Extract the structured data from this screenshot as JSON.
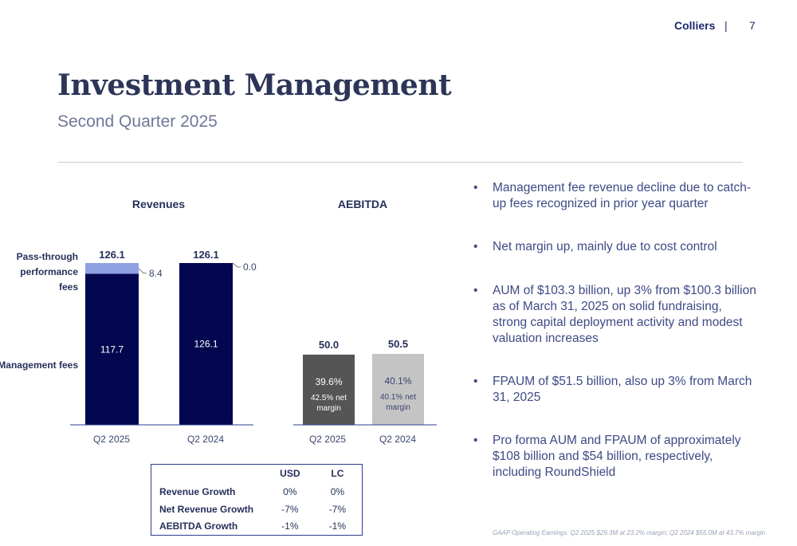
{
  "header": {
    "brand": "Colliers",
    "separator": "|",
    "page_number": "7"
  },
  "title": "Investment Management",
  "subtitle": "Second Quarter 2025",
  "colors": {
    "management_fees": "#03074f",
    "pass_through": "#8ea2e3",
    "aebitda_q2_2025": "#555555",
    "aebitda_q2_2024": "#c4c4c4"
  },
  "chart_data": [
    {
      "type": "bar",
      "stacked": true,
      "title": "Revenues",
      "categories": [
        "Q2 2025",
        "Q2 2024"
      ],
      "series": [
        {
          "name": "Management fees",
          "values": [
            117.7,
            126.1
          ],
          "labels": [
            "117.7",
            "126.1"
          ]
        },
        {
          "name": "Pass-through performance fees",
          "values": [
            8.4,
            0.0
          ],
          "labels": [
            "8.4",
            "0.0"
          ]
        }
      ],
      "totals": [
        "126.1",
        "126.1"
      ],
      "legend": {
        "placement": "left",
        "labels": [
          "Pass-through performance fees",
          "Management fees"
        ]
      }
    },
    {
      "type": "bar",
      "title": "AEBITDA",
      "categories": [
        "Q2 2025",
        "Q2 2024"
      ],
      "values": [
        50.0,
        50.5
      ],
      "totals": [
        "50.0",
        "50.5"
      ],
      "inner_labels": [
        {
          "margin": "39.6%",
          "net": "42.5% net margin"
        },
        {
          "margin": "40.1%",
          "net": "40.1% net margin"
        }
      ]
    }
  ],
  "table": {
    "headers": [
      "",
      "USD",
      "LC"
    ],
    "rows": [
      {
        "metric": "Revenue Growth",
        "usd": "0%",
        "lc": "0%"
      },
      {
        "metric": "Net Revenue Growth",
        "usd": "-7%",
        "lc": "-7%"
      },
      {
        "metric": "AEBITDA Growth",
        "usd": "-1%",
        "lc": "-1%"
      }
    ]
  },
  "bullets": [
    "Management fee revenue decline due to catch-up fees recognized in prior year quarter",
    "Net margin up, mainly due to cost control",
    "AUM of $103.3 billion, up 3% from $100.3 billion as of March 31, 2025 on solid fundraising, strong capital deployment activity and modest valuation increases",
    "FPAUM of $51.5 billion, also up 3% from March 31, 2025",
    "Pro forma AUM and FPAUM of approximately $108 billion and $54 billion, respectively, including RoundShield"
  ],
  "footnote": "GAAP Operating Earnings: Q2 2025 $29.3M at 23.2% margin; Q2 2024 $55.0M at 43.7% margin"
}
